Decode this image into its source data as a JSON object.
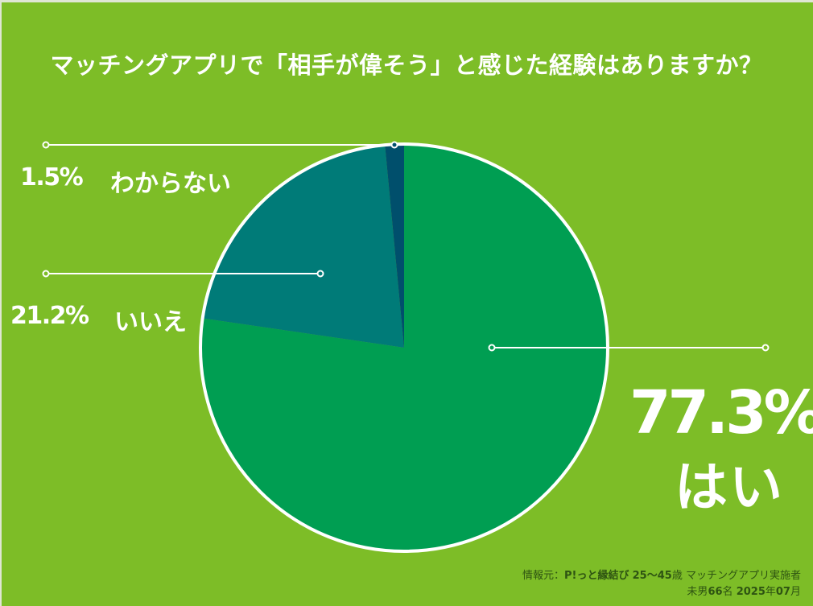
{
  "chart_data": {
    "type": "pie",
    "title": "マッチングアプリで「相手が偉そう」と感じた経験はありますか？",
    "slices": [
      {
        "label": "はい",
        "value": 77.3,
        "value_label": "77.3%",
        "color": "#009e52"
      },
      {
        "label": "いいえ",
        "value": 21.2,
        "value_label": "21.2%",
        "color": "#007b78"
      },
      {
        "label": "わからない",
        "value": 1.5,
        "value_label": "1.5%",
        "color": "#004f6c"
      }
    ],
    "start_angle": "12 o'clock",
    "direction": "clockwise",
    "legend": "none",
    "border_color": "#ffffff",
    "background": "#7dbd27"
  },
  "source": {
    "prefix": "情報元：",
    "brand": "P!っと縁結び",
    "age": "25〜45",
    "age_unit": "歳",
    "audience": "マッチングアプリ実施者",
    "line2_prefix": "未男",
    "count": "66",
    "count_unit": "名",
    "year": "2025",
    "year_unit": "年",
    "month": "07",
    "month_unit": "月"
  }
}
